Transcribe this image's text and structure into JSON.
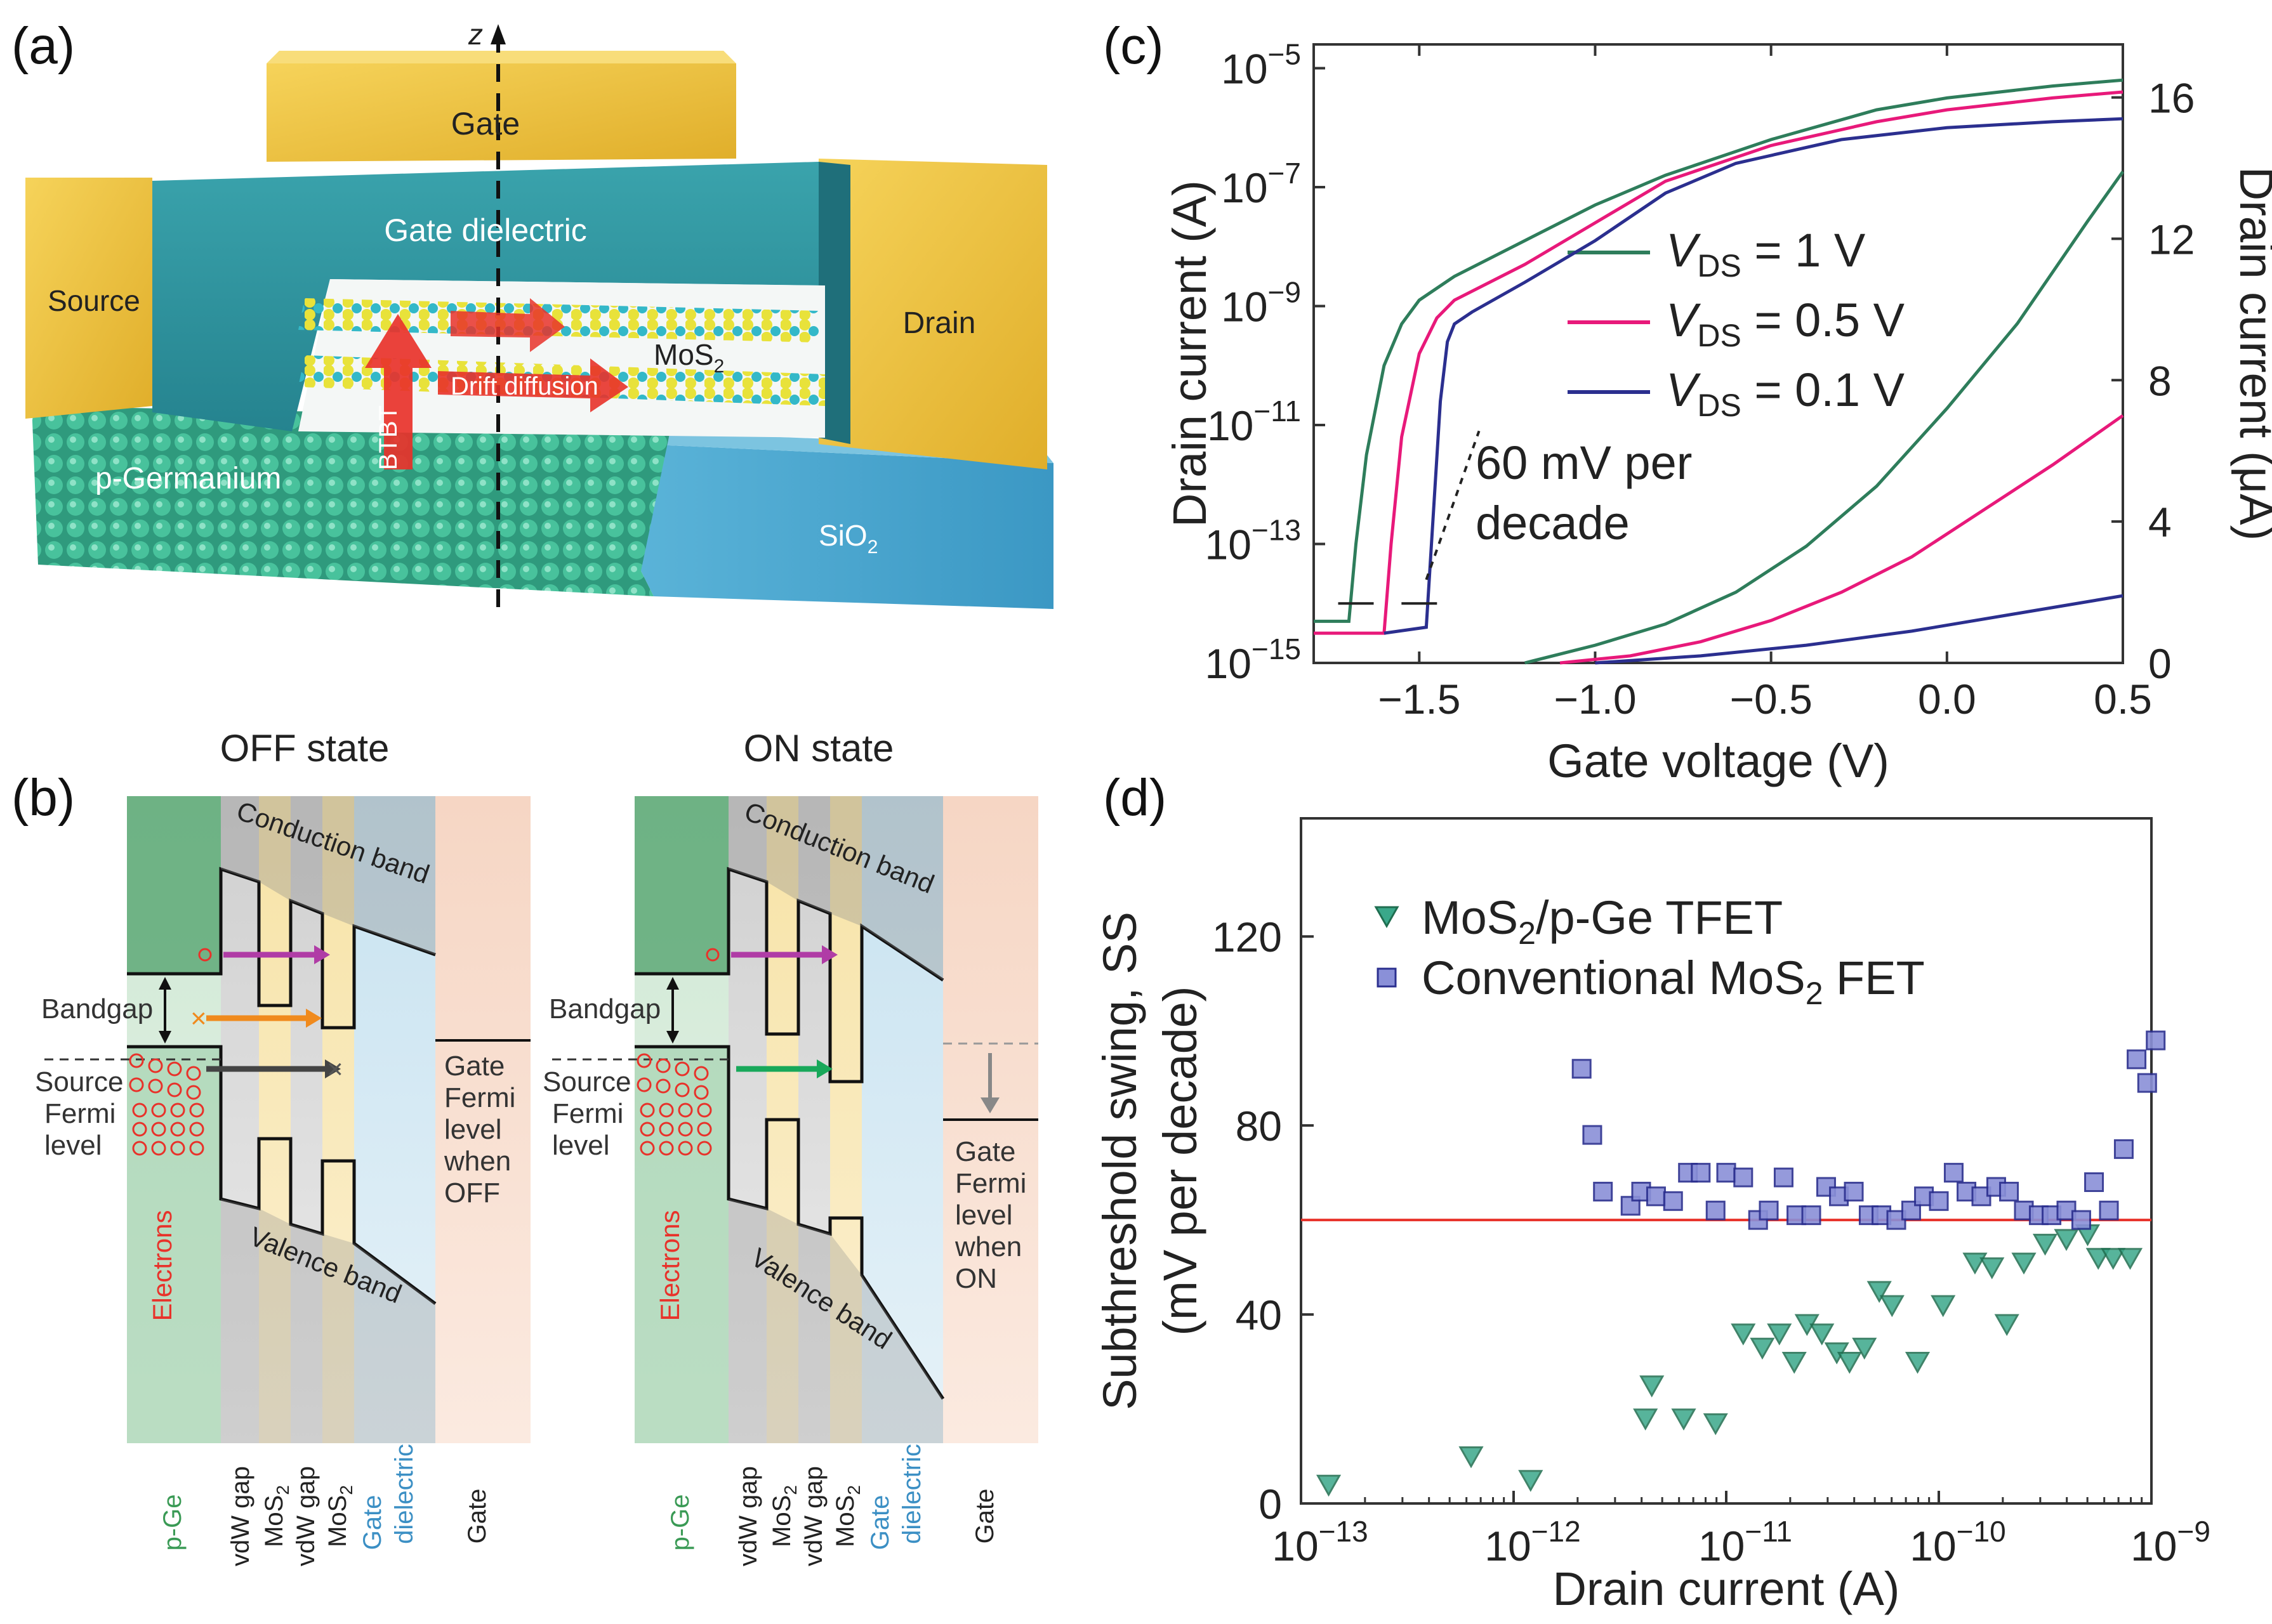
{
  "panel_labels": {
    "a": "(a)",
    "b": "(b)",
    "c": "(c)",
    "d": "(d)"
  },
  "panel_a": {
    "z_axis": "z",
    "gate": "Gate",
    "gate_dielectric": "Gate dielectric",
    "source": "Source",
    "drain": "Drain",
    "mos2": "MoS",
    "mos2_sub": "2",
    "btbt": "BTBT",
    "drift": "Drift diffusion",
    "pge": "p-Germanium",
    "sio2": "SiO",
    "sio2_sub": "2",
    "colors": {
      "gold": "#f2c94c",
      "teal": "#2e9aa6",
      "green": "#3aa88a",
      "blue": "#4aa6cc",
      "red": "#e8322a"
    }
  },
  "panel_b": {
    "off": {
      "title": "OFF state",
      "conduction": "Conduction band",
      "valence": "Valence band",
      "bandgap": "Bandgap",
      "fermi": [
        "Source",
        "Fermi",
        "level"
      ],
      "gate_fermi": [
        "Gate",
        "Fermi",
        "level",
        "when",
        "OFF"
      ],
      "electrons": "Electrons",
      "x_mark1": "×",
      "x_mark2": "×"
    },
    "on": {
      "title": "ON state",
      "conduction": "Conduction band",
      "valence": "Valence band",
      "bandgap": "Bandgap",
      "fermi": [
        "Source",
        "Fermi",
        "level"
      ],
      "gate_fermi": [
        "Gate",
        "Fermi",
        "level",
        "when",
        "ON"
      ],
      "electrons": "Electrons"
    },
    "layers": {
      "pge": "p-Ge",
      "vdw1": "vdW gap",
      "mos1": "MoS",
      "mos_sub": "2",
      "vdw2": "vdW gap",
      "mos2": "MoS",
      "gd1": "Gate",
      "gd2": "dielectric",
      "gate": "Gate"
    }
  },
  "chart_data": [
    {
      "id": "c",
      "type": "line",
      "xlabel": "Gate voltage (V)",
      "ylabel_left": "Drain current (A)",
      "ylabel_right": "Drain current (μA)",
      "x_ticks": [
        "−1.5",
        "−1.0",
        "−0.5",
        "0.0",
        "0.5"
      ],
      "x_tick_values": [
        -1.5,
        -1.0,
        -0.5,
        0.0,
        0.5
      ],
      "xlim": [
        -1.8,
        0.5
      ],
      "left_log_ticks": [
        {
          "base": "10",
          "exp": "−5"
        },
        {
          "base": "10",
          "exp": "−7"
        },
        {
          "base": "10",
          "exp": "−9"
        },
        {
          "base": "10",
          "exp": "−11"
        },
        {
          "base": "10",
          "exp": "−13"
        },
        {
          "base": "10",
          "exp": "−15"
        }
      ],
      "left_log_values": [
        -5,
        -7,
        -9,
        -11,
        -13,
        -15
      ],
      "ylim_log": [
        -15,
        -4.6
      ],
      "right_ticks": [
        "16",
        "12",
        "8",
        "4",
        "0"
      ],
      "right_tick_values": [
        16,
        12,
        8,
        4,
        0
      ],
      "ylim_linear": [
        0,
        17.5
      ],
      "annotation": [
        "60 mV per",
        "decade"
      ],
      "series": [
        {
          "name": "1 V",
          "label_var": "V",
          "label_sub": "DS",
          "label_rest": " = 1 V",
          "color": "#2e7d5b",
          "log_x": [
            -1.8,
            -1.7,
            -1.68,
            -1.65,
            -1.6,
            -1.55,
            -1.5,
            -1.4,
            -1.2,
            -1.0,
            -0.8,
            -0.5,
            -0.2,
            0.0,
            0.3,
            0.5
          ],
          "log_y": [
            -14.3,
            -14.3,
            -13.0,
            -11.5,
            -10.0,
            -9.3,
            -8.9,
            -8.5,
            -7.9,
            -7.3,
            -6.8,
            -6.2,
            -5.7,
            -5.5,
            -5.3,
            -5.2
          ],
          "lin_x": [
            -1.2,
            -1.0,
            -0.8,
            -0.6,
            -0.4,
            -0.2,
            0.0,
            0.2,
            0.4,
            0.5
          ],
          "lin_y": [
            0.0,
            0.5,
            1.1,
            2.0,
            3.3,
            5.0,
            7.2,
            9.6,
            12.5,
            13.9
          ]
        },
        {
          "name": "0.5 V",
          "label_var": "V",
          "label_sub": "DS",
          "label_rest": " = 0.5 V",
          "color": "#e8197a",
          "log_x": [
            -1.8,
            -1.6,
            -1.58,
            -1.55,
            -1.5,
            -1.45,
            -1.4,
            -1.2,
            -1.0,
            -0.8,
            -0.5,
            -0.2,
            0.0,
            0.3,
            0.5
          ],
          "log_y": [
            -14.5,
            -14.5,
            -13.0,
            -11.2,
            -9.8,
            -9.2,
            -8.9,
            -8.3,
            -7.6,
            -6.9,
            -6.3,
            -5.9,
            -5.7,
            -5.5,
            -5.4
          ],
          "lin_x": [
            -1.1,
            -0.9,
            -0.7,
            -0.5,
            -0.3,
            -0.1,
            0.1,
            0.3,
            0.5
          ],
          "lin_y": [
            0.0,
            0.2,
            0.6,
            1.2,
            2.0,
            3.0,
            4.3,
            5.6,
            7.0
          ]
        },
        {
          "name": "0.1 V",
          "label_var": "V",
          "label_sub": "DS",
          "label_rest": " = 0.1 V",
          "color": "#2b2f8f",
          "log_x": [
            -1.6,
            -1.48,
            -1.46,
            -1.44,
            -1.42,
            -1.4,
            -1.35,
            -1.2,
            -1.0,
            -0.8,
            -0.6,
            -0.3,
            0.0,
            0.3,
            0.5
          ],
          "log_y": [
            -14.5,
            -14.4,
            -12.5,
            -10.6,
            -9.6,
            -9.3,
            -9.1,
            -8.6,
            -7.9,
            -7.1,
            -6.6,
            -6.2,
            -6.0,
            -5.9,
            -5.85
          ],
          "lin_x": [
            -1.0,
            -0.7,
            -0.4,
            -0.1,
            0.2,
            0.5
          ],
          "lin_y": [
            0.0,
            0.2,
            0.5,
            0.9,
            1.4,
            1.9
          ]
        }
      ]
    },
    {
      "id": "d",
      "type": "scatter",
      "xlabel": "Drain current (A)",
      "ylabel": [
        "Subthreshold swing, SS",
        "(mV per decade)"
      ],
      "x_log_ticks": [
        {
          "base": "10",
          "exp": "−13"
        },
        {
          "base": "10",
          "exp": "−12"
        },
        {
          "base": "10",
          "exp": "−11"
        },
        {
          "base": "10",
          "exp": "−10"
        },
        {
          "base": "10",
          "exp": "−9"
        }
      ],
      "x_log_values": [
        -13,
        -12,
        -11,
        -10,
        -9
      ],
      "xlim_log": [
        -13,
        -9
      ],
      "y_ticks": [
        "0",
        "40",
        "80",
        "120"
      ],
      "y_tick_values": [
        0,
        40,
        80,
        120
      ],
      "ylim": [
        0,
        145
      ],
      "reference_line": 60,
      "reference_color": "#e8322a",
      "series": [
        {
          "name": "MoS2/p-Ge TFET",
          "label_pre": "MoS",
          "label_sub": "2",
          "label_post": "/p-Ge TFET",
          "marker": "triangle-down",
          "color": "#3aa88a",
          "log_x": [
            -12.87,
            -12.2,
            -11.92,
            -11.38,
            -11.35,
            -11.2,
            -11.05,
            -10.92,
            -10.83,
            -10.75,
            -10.68,
            -10.62,
            -10.55,
            -10.48,
            -10.42,
            -10.35,
            -10.28,
            -10.22,
            -10.1,
            -9.98,
            -9.83,
            -9.75,
            -9.68,
            -9.6,
            -9.5,
            -9.4,
            -9.3,
            -9.25,
            -9.18,
            -9.1
          ],
          "y": [
            4,
            10,
            5,
            18,
            25,
            18,
            17,
            36,
            33,
            36,
            30,
            38,
            36,
            32,
            30,
            33,
            45,
            42,
            30,
            42,
            51,
            50,
            38,
            51,
            55,
            56,
            57,
            52,
            52,
            52
          ]
        },
        {
          "name": "Conventional MoS2 FET",
          "label_pre": "Conventional MoS",
          "label_sub": "2",
          "label_post": " FET",
          "marker": "square",
          "color": "#8a90d8",
          "log_x": [
            -11.68,
            -11.63,
            -11.58,
            -11.45,
            -11.4,
            -11.33,
            -11.25,
            -11.18,
            -11.12,
            -11.05,
            -11.0,
            -10.92,
            -10.85,
            -10.8,
            -10.73,
            -10.67,
            -10.6,
            -10.53,
            -10.47,
            -10.4,
            -10.33,
            -10.27,
            -10.2,
            -10.13,
            -10.07,
            -10.0,
            -9.93,
            -9.87,
            -9.8,
            -9.73,
            -9.67,
            -9.6,
            -9.53,
            -9.47,
            -9.4,
            -9.33,
            -9.27,
            -9.2,
            -9.13,
            -9.07,
            -9.02,
            -8.98
          ],
          "y": [
            92,
            78,
            66,
            63,
            66,
            65,
            64,
            70,
            70,
            62,
            70,
            69,
            60,
            62,
            69,
            61,
            61,
            67,
            65,
            66,
            61,
            61,
            60,
            62,
            65,
            64,
            70,
            66,
            65,
            67,
            66,
            62,
            61,
            61,
            62,
            60,
            68,
            62,
            75,
            94,
            89,
            98
          ]
        }
      ]
    }
  ]
}
